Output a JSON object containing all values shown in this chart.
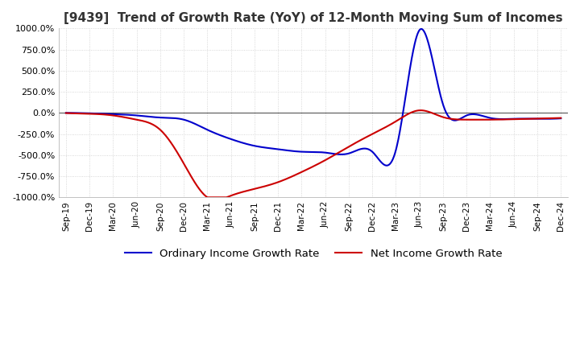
{
  "title": "[9439]  Trend of Growth Rate (YoY) of 12-Month Moving Sum of Incomes",
  "title_fontsize": 11,
  "background_color": "#ffffff",
  "plot_bg_color": "#ffffff",
  "grid_color": "#cccccc",
  "ylim": [
    -1000,
    1000
  ],
  "yticks": [
    -1000,
    -750,
    -500,
    -250,
    0,
    250,
    500,
    750,
    1000
  ],
  "x_labels": [
    "Sep-19",
    "Dec-19",
    "Mar-20",
    "Jun-20",
    "Sep-20",
    "Dec-20",
    "Mar-21",
    "Jun-21",
    "Sep-21",
    "Dec-21",
    "Mar-22",
    "Jun-22",
    "Sep-22",
    "Dec-22",
    "Mar-23",
    "Jun-23",
    "Sep-23",
    "Dec-23",
    "Mar-24",
    "Jun-24",
    "Sep-24",
    "Dec-24"
  ],
  "ordinary_income": [
    0,
    -5,
    -15,
    -30,
    -55,
    -80,
    -200,
    -310,
    -390,
    -430,
    -460,
    -470,
    -480,
    -460,
    -440,
    980,
    100,
    -30,
    -60,
    -70,
    -70,
    -65
  ],
  "net_income": [
    -2,
    -10,
    -30,
    -80,
    -200,
    -600,
    -1000,
    -980,
    -900,
    -820,
    -700,
    -560,
    -400,
    -250,
    -100,
    30,
    -50,
    -80,
    -80,
    -75,
    -68,
    -60
  ],
  "line_color_ordinary": "#0000cc",
  "line_color_net": "#cc0000",
  "line_width": 1.5,
  "legend_ordinary": "Ordinary Income Growth Rate",
  "legend_net": "Net Income Growth Rate",
  "legend_fontsize": 9.5
}
